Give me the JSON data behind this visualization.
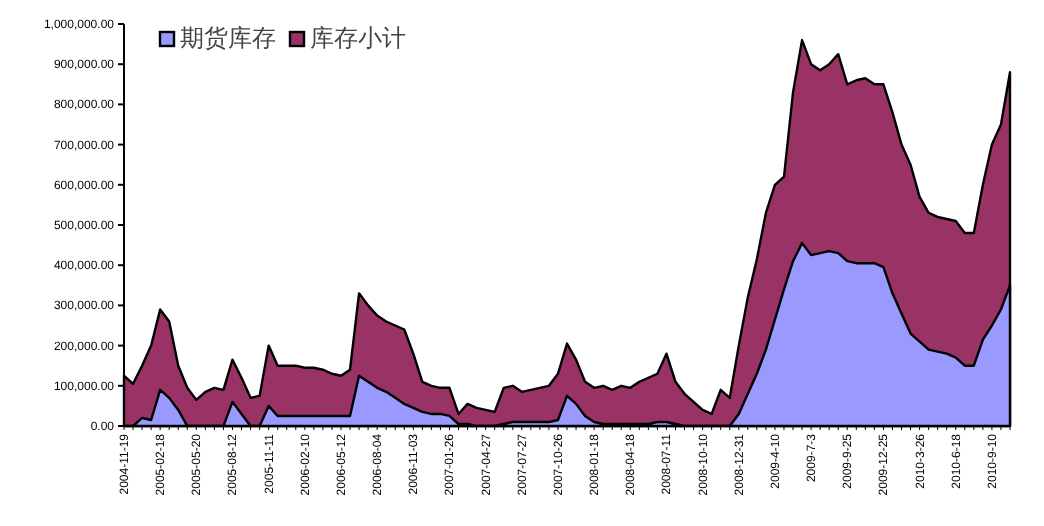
{
  "chart_data": {
    "type": "area",
    "categories": [
      "2004-11-19",
      null,
      null,
      null,
      "2005-02-18",
      null,
      null,
      null,
      "2005-05-20",
      null,
      null,
      null,
      "2005-08-12",
      null,
      null,
      null,
      "2005-11-11",
      null,
      null,
      null,
      "2006-02-10",
      null,
      null,
      null,
      "2006-05-12",
      null,
      null,
      null,
      "2006-08-04",
      null,
      null,
      null,
      "2006-11-03",
      null,
      null,
      null,
      "2007-01-26",
      null,
      null,
      null,
      "2007-04-27",
      null,
      null,
      null,
      "2007-07-27",
      null,
      null,
      null,
      "2007-10-26",
      null,
      null,
      null,
      "2008-01-18",
      null,
      null,
      null,
      "2008-04-18",
      null,
      null,
      null,
      "2008-07-11",
      null,
      null,
      null,
      "2008-10-10",
      null,
      null,
      null,
      "2008-12-31",
      null,
      null,
      null,
      "2009-4-10",
      null,
      null,
      null,
      "2009-7-3",
      null,
      null,
      null,
      "2009-9-25",
      null,
      null,
      null,
      "2009-12-25",
      null,
      null,
      null,
      "2010-3-26",
      null,
      null,
      null,
      "2010-6-18",
      null,
      null,
      null,
      "2010-9-10",
      null,
      null
    ],
    "series": [
      {
        "name": "期货库存",
        "color": "#9999ff",
        "values": [
          0,
          0,
          20000,
          15000,
          90000,
          70000,
          40000,
          0,
          0,
          0,
          0,
          0,
          60000,
          30000,
          0,
          0,
          50000,
          25000,
          25000,
          25000,
          25000,
          25000,
          25000,
          25000,
          25000,
          25000,
          125000,
          110000,
          95000,
          85000,
          70000,
          55000,
          45000,
          35000,
          30000,
          30000,
          25000,
          5000,
          5000,
          0,
          0,
          0,
          5000,
          10000,
          10000,
          10000,
          10000,
          10000,
          15000,
          75000,
          55000,
          25000,
          10000,
          5000,
          5000,
          5000,
          5000,
          5000,
          5000,
          10000,
          10000,
          5000,
          0,
          0,
          0,
          0,
          0,
          0,
          30000,
          80000,
          130000,
          190000,
          265000,
          340000,
          410000,
          455000,
          425000,
          430000,
          435000,
          430000,
          410000,
          405000,
          405000,
          405000,
          395000,
          330000,
          280000,
          230000,
          210000,
          190000,
          185000,
          180000,
          170000,
          150000,
          150000,
          215000,
          250000,
          290000,
          350000
        ]
      },
      {
        "name": "库存小计",
        "color": "#993366",
        "values": [
          125000,
          105000,
          150000,
          200000,
          290000,
          260000,
          150000,
          95000,
          65000,
          85000,
          95000,
          90000,
          165000,
          120000,
          70000,
          75000,
          200000,
          150000,
          150000,
          150000,
          145000,
          145000,
          140000,
          130000,
          125000,
          140000,
          330000,
          300000,
          275000,
          260000,
          250000,
          240000,
          180000,
          110000,
          100000,
          95000,
          95000,
          30000,
          55000,
          45000,
          40000,
          35000,
          95000,
          100000,
          85000,
          90000,
          95000,
          100000,
          130000,
          205000,
          165000,
          110000,
          95000,
          100000,
          90000,
          100000,
          95000,
          110000,
          120000,
          130000,
          180000,
          110000,
          80000,
          60000,
          40000,
          30000,
          90000,
          70000,
          200000,
          320000,
          415000,
          530000,
          600000,
          620000,
          830000,
          960000,
          900000,
          885000,
          900000,
          925000,
          850000,
          860000,
          865000,
          850000,
          850000,
          780000,
          700000,
          650000,
          570000,
          530000,
          520000,
          515000,
          510000,
          480000,
          480000,
          600000,
          700000,
          750000,
          880000
        ]
      }
    ],
    "ylim": [
      0,
      1000000
    ],
    "yticks": [
      {
        "value": 0,
        "label": "0.00"
      },
      {
        "value": 100000,
        "label": "100,000.00"
      },
      {
        "value": 200000,
        "label": "200,000.00"
      },
      {
        "value": 300000,
        "label": "300,000.00"
      },
      {
        "value": 400000,
        "label": "400,000.00"
      },
      {
        "value": 500000,
        "label": "500,000.00"
      },
      {
        "value": 600000,
        "label": "600,000.00"
      },
      {
        "value": 700000,
        "label": "700,000.00"
      },
      {
        "value": 800000,
        "label": "800,000.00"
      },
      {
        "value": 900000,
        "label": "900,000.00"
      },
      {
        "value": 1000000,
        "label": "1,000,000.00"
      }
    ],
    "legend": "top left"
  }
}
